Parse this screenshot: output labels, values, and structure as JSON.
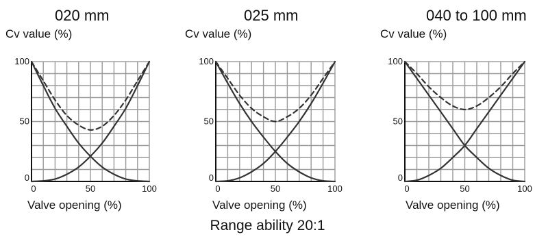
{
  "caption": "Range ability  20:1",
  "colors": {
    "grid": "#9a9a9a",
    "curve": "#333333",
    "axis": "#111111"
  },
  "chart_data": [
    {
      "type": "line",
      "title": "020 mm",
      "ylabel": "Cv value (%)",
      "xlabel": "Valve opening (%)",
      "xlim": [
        0,
        100
      ],
      "ylim": [
        0,
        100
      ],
      "xticks": [
        "0",
        "50",
        "100"
      ],
      "yticks": [
        "0",
        "50",
        "100"
      ],
      "grid": true,
      "series": [
        {
          "style": "solid",
          "x": [
            0,
            10,
            20,
            30,
            40,
            50,
            60,
            70,
            80,
            90,
            100
          ],
          "y": [
            100,
            80,
            61,
            46,
            32,
            21,
            12,
            6,
            2,
            0.5,
            0
          ]
        },
        {
          "style": "solid",
          "x": [
            0,
            10,
            20,
            30,
            40,
            50,
            60,
            70,
            80,
            90,
            100
          ],
          "y": [
            0,
            0.5,
            2,
            6,
            12,
            21,
            32,
            46,
            61,
            80,
            100
          ]
        },
        {
          "style": "dashed",
          "x": [
            0,
            10,
            20,
            30,
            40,
            50,
            60,
            70,
            80,
            90,
            100
          ],
          "y": [
            100,
            84,
            68,
            55,
            47,
            43,
            46,
            55,
            68,
            84,
            100
          ]
        }
      ]
    },
    {
      "type": "line",
      "title": "025 mm",
      "ylabel": "Cv value (%)",
      "xlabel": "Valve opening (%)",
      "xlim": [
        0,
        100
      ],
      "ylim": [
        0,
        100
      ],
      "xticks": [
        "0",
        "50",
        "100"
      ],
      "yticks": [
        "0",
        "50",
        "100"
      ],
      "grid": true,
      "series": [
        {
          "style": "solid",
          "x": [
            0,
            10,
            20,
            30,
            40,
            50,
            60,
            70,
            80,
            90,
            100
          ],
          "y": [
            100,
            82,
            65,
            50,
            37,
            25,
            15,
            8,
            3,
            0.5,
            0
          ]
        },
        {
          "style": "solid",
          "x": [
            0,
            10,
            20,
            30,
            40,
            50,
            60,
            70,
            80,
            90,
            100
          ],
          "y": [
            0,
            0.5,
            3,
            8,
            15,
            25,
            37,
            50,
            65,
            82,
            100
          ]
        },
        {
          "style": "dashed",
          "x": [
            0,
            10,
            20,
            30,
            40,
            50,
            60,
            70,
            80,
            90,
            100
          ],
          "y": [
            100,
            86,
            72,
            61,
            54,
            50,
            54,
            61,
            72,
            86,
            100
          ]
        }
      ]
    },
    {
      "type": "line",
      "title": "040 to 100 mm",
      "ylabel": "Cv value (%)",
      "xlabel": "Valve opening (%)",
      "xlim": [
        0,
        100
      ],
      "ylim": [
        0,
        100
      ],
      "xticks": [
        "0",
        "50",
        "100"
      ],
      "yticks": [
        "0",
        "50",
        "100"
      ],
      "grid": true,
      "series": [
        {
          "style": "solid",
          "x": [
            0,
            10,
            20,
            30,
            40,
            50,
            60,
            70,
            80,
            90,
            100
          ],
          "y": [
            100,
            86,
            72,
            58,
            44,
            30,
            20,
            11,
            5,
            1,
            0
          ]
        },
        {
          "style": "solid",
          "x": [
            0,
            10,
            20,
            30,
            40,
            50,
            60,
            70,
            80,
            90,
            100
          ],
          "y": [
            0,
            1,
            5,
            11,
            20,
            30,
            44,
            58,
            72,
            86,
            100
          ]
        },
        {
          "style": "dashed",
          "x": [
            0,
            10,
            20,
            30,
            40,
            50,
            60,
            70,
            80,
            90,
            100
          ],
          "y": [
            100,
            90,
            79,
            70,
            63,
            60,
            63,
            70,
            79,
            90,
            100
          ]
        }
      ]
    }
  ]
}
